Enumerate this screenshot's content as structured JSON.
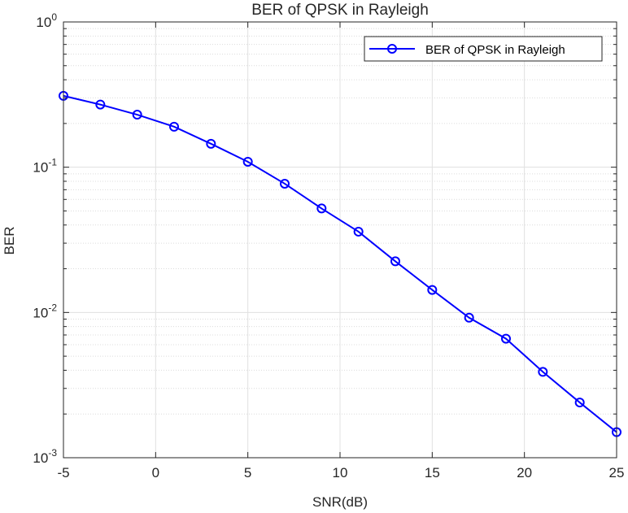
{
  "chart_data": {
    "type": "line",
    "title": "BER of QPSK in Rayleigh",
    "xlabel": "SNR(dB)",
    "ylabel": "BER",
    "x_scale": "linear",
    "y_scale": "log",
    "xlim": [
      -5,
      25
    ],
    "ylim": [
      0.001,
      1
    ],
    "grid": true,
    "minor_grid": true,
    "legend_position": "top-right",
    "x_ticks": [
      "-5",
      "0",
      "5",
      "10",
      "15",
      "20",
      "25"
    ],
    "y_ticks": [
      {
        "base": "10",
        "exp": "0"
      },
      {
        "base": "10",
        "exp": "-1"
      },
      {
        "base": "10",
        "exp": "-2"
      },
      {
        "base": "10",
        "exp": "-3"
      }
    ],
    "series": [
      {
        "name": "BER of QPSK in Rayleigh",
        "color": "#0000ff",
        "marker": "circle",
        "x": [
          -5,
          -3,
          -1,
          1,
          3,
          5,
          7,
          9,
          11,
          13,
          15,
          17,
          19,
          21,
          23,
          25
        ],
        "y": [
          0.31,
          0.27,
          0.23,
          0.19,
          0.145,
          0.109,
          0.077,
          0.052,
          0.036,
          0.0225,
          0.0143,
          0.0092,
          0.0066,
          0.0039,
          0.0024,
          0.0015
        ]
      }
    ]
  }
}
